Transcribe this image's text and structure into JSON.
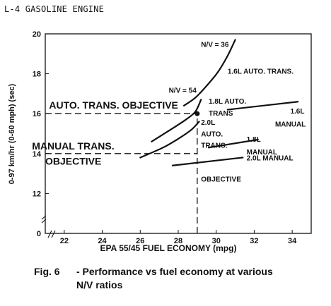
{
  "page_title": "L-4 GASOLINE ENGINE",
  "caption": {
    "label": "Fig. 6",
    "text_line1": "- Performance vs fuel economy at various",
    "text_line2": "N/V ratios"
  },
  "chart_data": {
    "type": "line",
    "xlabel": "EPA 55/45 FUEL ECONOMY (mpg)",
    "ylabel": "0-97 km/hr (0-60 mph) (sec)",
    "xlim": [
      21,
      35
    ],
    "ylim": [
      10,
      20
    ],
    "x_ticks": [
      22,
      24,
      26,
      28,
      30,
      32,
      34
    ],
    "y_ticks": [
      12,
      14,
      16,
      18,
      20
    ],
    "y_origin_label": "0",
    "grid": false,
    "series": [
      {
        "name": "1.6L AUTO. TRANS.",
        "x": [
          28.3,
          28.9,
          29.5,
          30.1,
          30.6,
          31.0
        ],
        "y": [
          16.4,
          16.8,
          17.4,
          18.1,
          18.9,
          19.7
        ]
      },
      {
        "name": "1.8L AUTO. TRANS",
        "x": [
          26.6,
          27.6,
          28.4,
          28.9,
          29.2
        ],
        "y": [
          14.6,
          15.2,
          15.7,
          16.1,
          16.7
        ]
      },
      {
        "name": "2.0L AUTO. TRANS.",
        "x": [
          26.0,
          27.2,
          28.1,
          28.7,
          29.1
        ],
        "y": [
          13.8,
          14.3,
          14.8,
          15.2,
          15.6
        ]
      },
      {
        "name": "1.6L MANUAL",
        "x": [
          30.6,
          34.3
        ],
        "y": [
          16.2,
          16.6
        ]
      },
      {
        "name": "1.8L MANUAL",
        "x": [
          29.6,
          32.2
        ],
        "y": [
          14.3,
          14.7
        ]
      },
      {
        "name": "2.0L MANUAL",
        "x": [
          27.7,
          31.4
        ],
        "y": [
          13.4,
          13.8
        ]
      }
    ],
    "objective_point": {
      "x": 29.0,
      "y": 16.0
    },
    "reference_lines": [
      {
        "label": "AUTO. TRANS. OBJECTIVE",
        "axis": "y",
        "value": 16.0,
        "from_x": 21.0,
        "to_x": 29.0
      },
      {
        "label": "MANUAL TRANS. OBJECTIVE",
        "axis": "y",
        "value": 14.0,
        "from_x": 21.0,
        "to_x": 29.0
      },
      {
        "label": "OBJECTIVE",
        "axis": "x",
        "value": 29.0,
        "from_y": 10.0,
        "to_y": 16.0
      }
    ],
    "annotations": [
      {
        "text": "N/V = 36",
        "x": 29.2,
        "y": 19.35
      },
      {
        "text": "N/V = 54",
        "x": 27.5,
        "y": 17.05
      },
      {
        "text": "1.6L AUTO. TRANS.",
        "x": 30.6,
        "y": 18.0
      },
      {
        "text": "1.8L AUTO.",
        "x": 29.6,
        "y": 16.5
      },
      {
        "text": "TRANS",
        "x": 29.6,
        "y": 15.9
      },
      {
        "text": "2.0L",
        "x": 29.2,
        "y": 15.45
      },
      {
        "text": "AUTO.",
        "x": 29.2,
        "y": 14.85
      },
      {
        "text": "TRANS.",
        "x": 29.2,
        "y": 14.3
      },
      {
        "text": "1.6L",
        "x": 33.9,
        "y": 16.0
      },
      {
        "text": "MANUAL",
        "x": 33.1,
        "y": 15.35
      },
      {
        "text": "1.8L",
        "x": 31.6,
        "y": 14.6
      },
      {
        "text": "MANUAL",
        "x": 31.6,
        "y": 13.95
      },
      {
        "text": "2.0L MANUAL",
        "x": 31.6,
        "y": 13.65
      },
      {
        "text": "OBJECTIVE",
        "x": 29.2,
        "y": 12.6
      },
      {
        "text": "AUTO. TRANS. OBJECTIVE",
        "x": 21.2,
        "y": 16.25
      },
      {
        "text": "MANUAL TRANS.",
        "x": 20.3,
        "y": 14.2
      },
      {
        "text": "OBJECTIVE",
        "x": 21.0,
        "y": 13.45
      }
    ]
  }
}
